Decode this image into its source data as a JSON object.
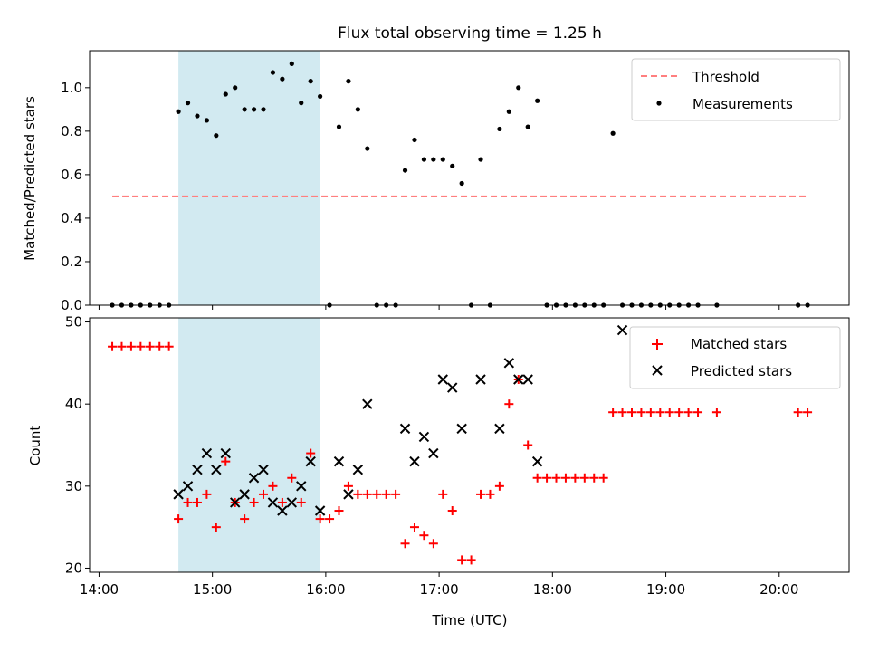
{
  "chart_data": [
    {
      "type": "scatter",
      "title": "Flux total observing time = 1.25 h",
      "xlabel": "",
      "ylabel": "Matched/Predicted stars",
      "xlim": [
        "13:55",
        "20:37"
      ],
      "ylim": [
        0,
        1.17
      ],
      "yticks": [
        0.0,
        0.2,
        0.4,
        0.6,
        0.8,
        1.0
      ],
      "ytick_labels": [
        "0.0",
        "0.2",
        "0.4",
        "0.6",
        "0.8",
        "1.0"
      ],
      "highlight_band": {
        "x0": "14:42",
        "x1": "15:57",
        "color": "#add8e6"
      },
      "threshold": {
        "name": "Threshold",
        "value": 0.5,
        "x0": "14:07",
        "x1": "20:15",
        "color": "#ff7f7f"
      },
      "legend": [
        "Threshold",
        "Measurements"
      ],
      "legend_position": "upper right",
      "series": [
        {
          "name": "Measurements",
          "color": "#000000",
          "points": [
            [
              "14:07",
              0
            ],
            [
              "14:12",
              0
            ],
            [
              "14:17",
              0
            ],
            [
              "14:22",
              0
            ],
            [
              "14:27",
              0
            ],
            [
              "14:32",
              0
            ],
            [
              "14:37",
              0
            ],
            [
              "14:42",
              0.89
            ],
            [
              "14:47",
              0.93
            ],
            [
              "14:52",
              0.87
            ],
            [
              "14:57",
              0.85
            ],
            [
              "15:02",
              0.78
            ],
            [
              "15:07",
              0.97
            ],
            [
              "15:12",
              1.0
            ],
            [
              "15:17",
              0.9
            ],
            [
              "15:22",
              0.9
            ],
            [
              "15:27",
              0.9
            ],
            [
              "15:32",
              1.07
            ],
            [
              "15:37",
              1.04
            ],
            [
              "15:42",
              1.11
            ],
            [
              "15:47",
              0.93
            ],
            [
              "15:52",
              1.03
            ],
            [
              "15:57",
              0.96
            ],
            [
              "16:02",
              0
            ],
            [
              "16:07",
              0.82
            ],
            [
              "16:12",
              1.03
            ],
            [
              "16:17",
              0.9
            ],
            [
              "16:22",
              0.72
            ],
            [
              "16:27",
              0
            ],
            [
              "16:32",
              0
            ],
            [
              "16:37",
              0
            ],
            [
              "16:42",
              0.62
            ],
            [
              "16:47",
              0.76
            ],
            [
              "16:52",
              0.67
            ],
            [
              "16:57",
              0.67
            ],
            [
              "17:02",
              0.67
            ],
            [
              "17:07",
              0.64
            ],
            [
              "17:12",
              0.56
            ],
            [
              "17:17",
              0
            ],
            [
              "17:22",
              0.67
            ],
            [
              "17:27",
              0
            ],
            [
              "17:32",
              0.81
            ],
            [
              "17:37",
              0.89
            ],
            [
              "17:42",
              1.0
            ],
            [
              "17:47",
              0.82
            ],
            [
              "17:52",
              0.94
            ],
            [
              "17:57",
              0
            ],
            [
              "18:02",
              0
            ],
            [
              "18:07",
              0
            ],
            [
              "18:12",
              0
            ],
            [
              "18:17",
              0
            ],
            [
              "18:22",
              0
            ],
            [
              "18:27",
              0
            ],
            [
              "18:32",
              0.79
            ],
            [
              "18:37",
              0
            ],
            [
              "18:42",
              0
            ],
            [
              "18:47",
              0
            ],
            [
              "18:52",
              0
            ],
            [
              "18:57",
              0
            ],
            [
              "19:02",
              0
            ],
            [
              "19:07",
              0
            ],
            [
              "19:12",
              0
            ],
            [
              "19:17",
              0
            ],
            [
              "19:27",
              0
            ],
            [
              "20:10",
              0
            ],
            [
              "20:15",
              0
            ]
          ]
        }
      ]
    },
    {
      "type": "scatter",
      "title": "",
      "xlabel": "Time (UTC)",
      "ylabel": "Count",
      "xlim": [
        "13:55",
        "20:37"
      ],
      "ylim": [
        19.5,
        50.5
      ],
      "yticks": [
        20,
        30,
        40,
        50
      ],
      "ytick_labels": [
        "20",
        "30",
        "40",
        "50"
      ],
      "xticks": [
        "14:00",
        "15:00",
        "16:00",
        "17:00",
        "18:00",
        "19:00",
        "20:00"
      ],
      "xtick_labels": [
        "14:00",
        "15:00",
        "16:00",
        "17:00",
        "18:00",
        "19:00",
        "20:00"
      ],
      "highlight_band": {
        "x0": "14:42",
        "x1": "15:57",
        "color": "#add8e6"
      },
      "legend": [
        "Matched stars",
        "Predicted stars"
      ],
      "legend_position": "upper right",
      "series": [
        {
          "name": "Matched stars",
          "color": "#ff0000",
          "marker": "+",
          "points": [
            [
              "14:07",
              47
            ],
            [
              "14:12",
              47
            ],
            [
              "14:17",
              47
            ],
            [
              "14:22",
              47
            ],
            [
              "14:27",
              47
            ],
            [
              "14:32",
              47
            ],
            [
              "14:37",
              47
            ],
            [
              "14:42",
              26
            ],
            [
              "14:47",
              28
            ],
            [
              "14:52",
              28
            ],
            [
              "14:57",
              29
            ],
            [
              "15:02",
              25
            ],
            [
              "15:07",
              33
            ],
            [
              "15:12",
              28
            ],
            [
              "15:17",
              26
            ],
            [
              "15:22",
              28
            ],
            [
              "15:27",
              29
            ],
            [
              "15:32",
              30
            ],
            [
              "15:37",
              28
            ],
            [
              "15:42",
              31
            ],
            [
              "15:47",
              28
            ],
            [
              "15:52",
              34
            ],
            [
              "15:57",
              26
            ],
            [
              "16:02",
              26
            ],
            [
              "16:07",
              27
            ],
            [
              "16:12",
              30
            ],
            [
              "16:17",
              29
            ],
            [
              "16:22",
              29
            ],
            [
              "16:27",
              29
            ],
            [
              "16:32",
              29
            ],
            [
              "16:37",
              29
            ],
            [
              "16:42",
              23
            ],
            [
              "16:47",
              25
            ],
            [
              "16:52",
              24
            ],
            [
              "16:57",
              23
            ],
            [
              "17:02",
              29
            ],
            [
              "17:07",
              27
            ],
            [
              "17:12",
              21
            ],
            [
              "17:17",
              21
            ],
            [
              "17:22",
              29
            ],
            [
              "17:27",
              29
            ],
            [
              "17:32",
              30
            ],
            [
              "17:37",
              40
            ],
            [
              "17:42",
              43
            ],
            [
              "17:47",
              35
            ],
            [
              "17:52",
              31
            ],
            [
              "17:57",
              31
            ],
            [
              "18:02",
              31
            ],
            [
              "18:07",
              31
            ],
            [
              "18:12",
              31
            ],
            [
              "18:17",
              31
            ],
            [
              "18:22",
              31
            ],
            [
              "18:27",
              31
            ],
            [
              "18:32",
              39
            ],
            [
              "18:37",
              39
            ],
            [
              "18:42",
              39
            ],
            [
              "18:47",
              39
            ],
            [
              "18:52",
              39
            ],
            [
              "18:57",
              39
            ],
            [
              "19:02",
              39
            ],
            [
              "19:07",
              39
            ],
            [
              "19:12",
              39
            ],
            [
              "19:17",
              39
            ],
            [
              "19:27",
              39
            ],
            [
              "20:10",
              39
            ],
            [
              "20:15",
              39
            ]
          ]
        },
        {
          "name": "Predicted stars",
          "color": "#000000",
          "marker": "x",
          "points": [
            [
              "14:42",
              29
            ],
            [
              "14:47",
              30
            ],
            [
              "14:52",
              32
            ],
            [
              "14:57",
              34
            ],
            [
              "15:02",
              32
            ],
            [
              "15:07",
              34
            ],
            [
              "15:12",
              28
            ],
            [
              "15:17",
              29
            ],
            [
              "15:22",
              31
            ],
            [
              "15:27",
              32
            ],
            [
              "15:32",
              28
            ],
            [
              "15:37",
              27
            ],
            [
              "15:42",
              28
            ],
            [
              "15:47",
              30
            ],
            [
              "15:52",
              33
            ],
            [
              "15:57",
              27
            ],
            [
              "16:07",
              33
            ],
            [
              "16:12",
              29
            ],
            [
              "16:17",
              32
            ],
            [
              "16:22",
              40
            ],
            [
              "16:42",
              37
            ],
            [
              "16:47",
              33
            ],
            [
              "16:52",
              36
            ],
            [
              "16:57",
              34
            ],
            [
              "17:02",
              43
            ],
            [
              "17:07",
              42
            ],
            [
              "17:12",
              37
            ],
            [
              "17:22",
              43
            ],
            [
              "17:32",
              37
            ],
            [
              "17:37",
              45
            ],
            [
              "17:42",
              43
            ],
            [
              "17:47",
              43
            ],
            [
              "17:52",
              33
            ],
            [
              "18:37",
              49
            ]
          ]
        }
      ]
    }
  ]
}
